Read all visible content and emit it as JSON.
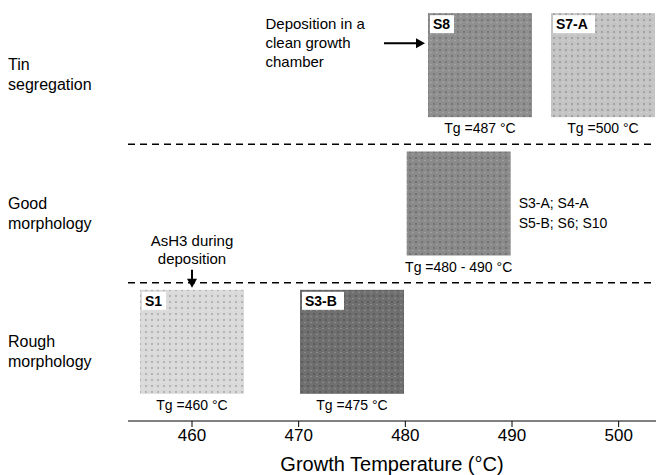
{
  "chart_data": {
    "type": "scatter",
    "x_label": "Growth Temperature  (°C)",
    "xlim": [
      454,
      503.5
    ],
    "xticks": [
      460,
      470,
      480,
      490,
      500
    ],
    "grid": false,
    "rows": [
      "Tin segregation",
      "Good morphology",
      "Rough morphology"
    ],
    "samples": [
      {
        "name": "S8",
        "row": "Tin segregation",
        "tg": 487,
        "label": "Tg =487 °C",
        "color": "#8f8f8f",
        "annotation": "Deposition in a clean growth chamber"
      },
      {
        "name": "S7-A",
        "row": "Tin segregation",
        "tg": 500,
        "label": "Tg =500 °C",
        "color": "#c4c4c4"
      },
      {
        "row": "Good morphology",
        "tg": [
          480,
          490
        ],
        "label": "Tg =480 - 490 °C",
        "color": "#8a8a8a",
        "members": [
          "S3-A; S4-A",
          "S5-B; S6; S10"
        ]
      },
      {
        "name": "S1",
        "row": "Rough morphology",
        "tg": 460,
        "label": "Tg =460 °C",
        "color": "#dadada",
        "annotation": "AsH3 during deposition"
      },
      {
        "name": "S3-B",
        "row": "Rough morphology",
        "tg": 475,
        "label": "Tg =475 °C",
        "color": "#6f6f6f"
      }
    ]
  }
}
